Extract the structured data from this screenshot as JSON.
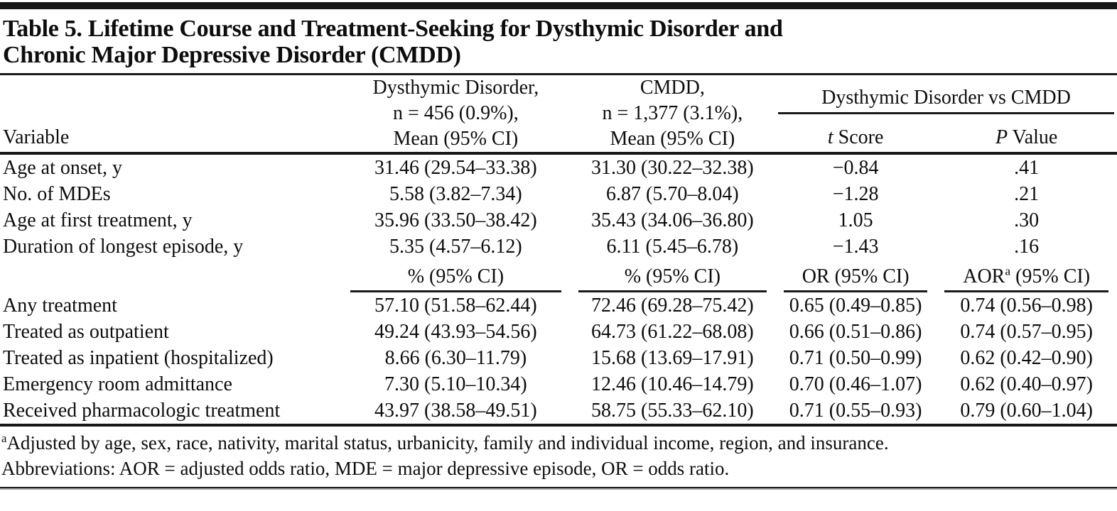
{
  "table": {
    "title_line1": "Table 5. Lifetime Course and Treatment-Seeking for Dysthymic Disorder and",
    "title_line2": "Chronic Major Depressive Disorder (CMDD)",
    "header": {
      "variable_label": "Variable",
      "dysthymic_lines": [
        "Dysthymic Disorder,",
        "n = 456 (0.9%),",
        "Mean (95% CI)"
      ],
      "cmdd_lines": [
        "CMDD,",
        "n = 1,377 (3.1%),",
        "Mean (95% CI)"
      ],
      "spanner": "Dysthymic Disorder vs CMDD",
      "t_score": {
        "italic": "t",
        "rest": " Score"
      },
      "p_value": {
        "italic": "P",
        "rest": " Value"
      }
    },
    "mean_rows": [
      {
        "variable": "Age at onset, y",
        "dysthymic": "31.46 (29.54–33.38)",
        "cmdd": "31.30 (30.22–32.38)",
        "t": "−0.84",
        "p": ".41"
      },
      {
        "variable": "No. of MDEs",
        "dysthymic": "5.58 (3.82–7.34)",
        "cmdd": "6.87 (5.70–8.04)",
        "t": "−1.28",
        "p": ".21"
      },
      {
        "variable": "Age at first treatment, y",
        "dysthymic": "35.96 (33.50–38.42)",
        "cmdd": "35.43 (34.06–36.80)",
        "t": "1.05",
        "p": ".30"
      },
      {
        "variable": "Duration of longest episode, y",
        "dysthymic": "5.35 (4.57–6.12)",
        "cmdd": "6.11 (5.45–6.78)",
        "t": "−1.43",
        "p": ".16"
      }
    ],
    "pct_subheader": {
      "dysthymic": "% (95% CI)",
      "cmdd": "% (95% CI)",
      "or": "OR (95% CI)",
      "aor_prefix": "AOR",
      "aor_sup": "a",
      "aor_rest": " (95% CI)"
    },
    "pct_rows": [
      {
        "variable": "Any treatment",
        "dysthymic": "57.10 (51.58–62.44)",
        "cmdd": "72.46 (69.28–75.42)",
        "or": "0.65 (0.49–0.85)",
        "aor": "0.74 (0.56–0.98)"
      },
      {
        "variable": "Treated as outpatient",
        "dysthymic": "49.24 (43.93–54.56)",
        "cmdd": "64.73 (61.22–68.08)",
        "or": "0.66 (0.51–0.86)",
        "aor": "0.74 (0.57–0.95)"
      },
      {
        "variable": "Treated as inpatient (hospitalized)",
        "dysthymic": "8.66 (6.30–11.79)",
        "cmdd": "15.68 (13.69–17.91)",
        "or": "0.71 (0.50–0.99)",
        "aor": "0.62 (0.42–0.90)"
      },
      {
        "variable": "Emergency room admittance",
        "dysthymic": "7.30 (5.10–10.34)",
        "cmdd": "12.46 (10.46–14.79)",
        "or": "0.70 (0.46–1.07)",
        "aor": "0.62 (0.40–0.97)"
      },
      {
        "variable": "Received pharmacologic treatment",
        "dysthymic": "43.97 (38.58–49.51)",
        "cmdd": "58.75 (55.33–62.10)",
        "or": "0.71 (0.55–0.93)",
        "aor": "0.79 (0.60–1.04)"
      }
    ],
    "footnotes": {
      "adjusted_sup": "a",
      "adjusted_text": "Adjusted by age, sex, race, nativity, marital status, urbanicity, family and individual income, region, and insurance.",
      "abbreviations_text": "Abbreviations: AOR = adjusted odds ratio, MDE = major depressive episode, OR = odds ratio."
    },
    "colors": {
      "text": "#0d0d0d",
      "rule": "#191919",
      "background": "#ffffff"
    }
  }
}
